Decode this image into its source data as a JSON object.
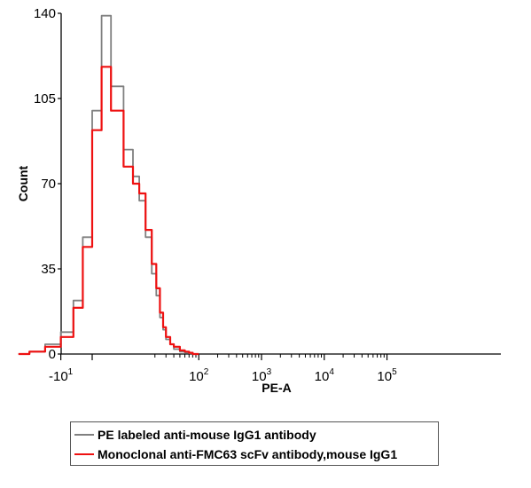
{
  "chart_data": {
    "type": "line",
    "title": "",
    "xlabel": "PE-A",
    "ylabel": "Count",
    "x_scale": "biexponential",
    "ylim": [
      0,
      140
    ],
    "y_ticks": [
      "0",
      "35",
      "70",
      "105",
      "140"
    ],
    "x_ticks": [
      {
        "base": "-10",
        "exp": "1",
        "value": -10
      },
      {
        "base": "10",
        "exp": "2",
        "value": 100
      },
      {
        "base": "10",
        "exp": "3",
        "value": 1000
      },
      {
        "base": "10",
        "exp": "4",
        "value": 10000
      },
      {
        "base": "10",
        "exp": "5",
        "value": 100000
      }
    ],
    "grid": false,
    "legend_position": "bottom",
    "series": [
      {
        "name": "PE labeled anti-mouse IgG1 antibody",
        "color": "#808080",
        "x": [
          -30,
          -20,
          -15,
          -10,
          -6,
          -3,
          0,
          3,
          6,
          10,
          13,
          15,
          17,
          19,
          21,
          24,
          27,
          30,
          35,
          40,
          50,
          60,
          70,
          80,
          100
        ],
        "y": [
          0,
          1,
          4,
          9,
          22,
          48,
          100,
          139,
          110,
          84,
          73,
          63,
          48,
          33,
          24,
          15,
          10,
          6,
          4,
          2,
          1,
          0.6,
          0.3,
          0,
          0
        ]
      },
      {
        "name": "Monoclonal anti-FMC63 scFv antibody,mouse IgG1",
        "color": "#ee1111",
        "x": [
          -30,
          -20,
          -15,
          -10,
          -6,
          -3,
          0,
          3,
          6,
          10,
          13,
          15,
          17,
          19,
          21,
          24,
          27,
          30,
          35,
          40,
          50,
          60,
          70,
          80,
          100
        ],
        "y": [
          0,
          1,
          3,
          7,
          19,
          44,
          92,
          118,
          100,
          77,
          70,
          66,
          51,
          37,
          27,
          17,
          11,
          7,
          4,
          3,
          1.5,
          1,
          0.5,
          0,
          0
        ]
      }
    ]
  }
}
